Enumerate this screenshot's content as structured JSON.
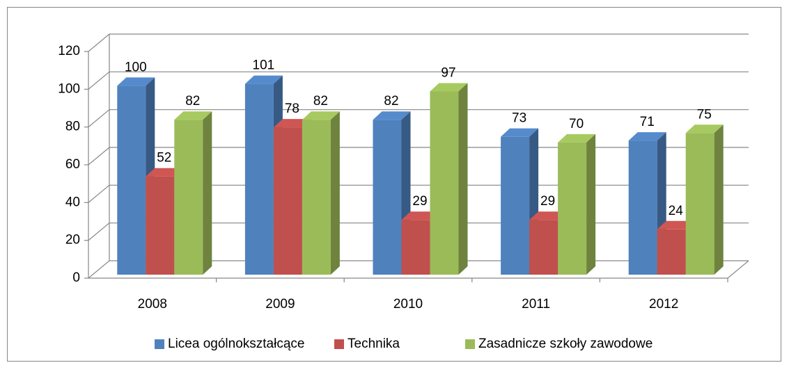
{
  "chart_data": {
    "type": "bar",
    "categories": [
      "2008",
      "2009",
      "2010",
      "2011",
      "2012"
    ],
    "series": [
      {
        "name": "Licea ogólnokształcące",
        "color": "#4f81bd",
        "values": [
          100,
          101,
          82,
          73,
          71
        ]
      },
      {
        "name": "Technika",
        "color": "#c0504d",
        "values": [
          52,
          78,
          29,
          29,
          24
        ]
      },
      {
        "name": "Zasadnicze szkoły zawodowe",
        "color": "#9bbb59",
        "values": [
          82,
          82,
          97,
          70,
          75
        ]
      }
    ],
    "ylim": [
      0,
      120
    ],
    "yticks": [
      0,
      20,
      40,
      60,
      80,
      100,
      120
    ],
    "grid": true,
    "legend": "bottom"
  }
}
